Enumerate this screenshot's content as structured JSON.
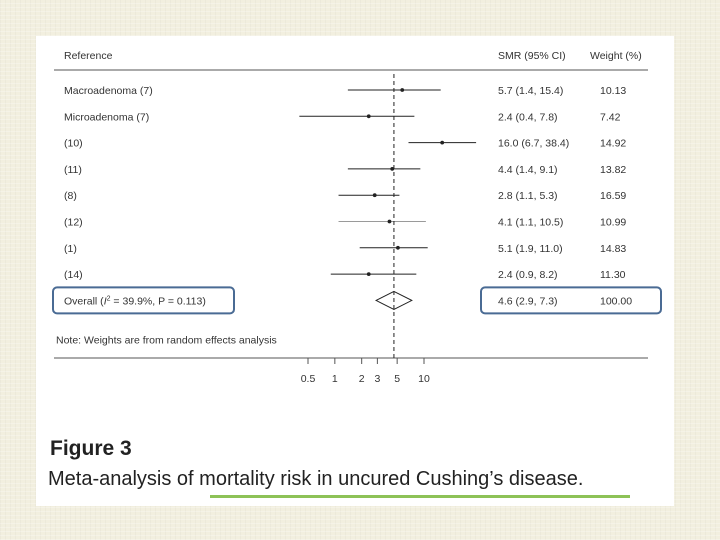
{
  "chart_data": {
    "type": "forest",
    "x_scale": "log",
    "reference_line": 4.6,
    "xticks": [
      "0.5",
      "1",
      "2",
      "3",
      "5",
      "10"
    ],
    "columns": {
      "reference": "Reference",
      "estimate": "SMR (95% CI)",
      "weight": "Weight (%)"
    },
    "studies": [
      {
        "label": "Macroadenoma (7)",
        "est": 5.7,
        "lo": 1.4,
        "hi": 15.4,
        "ci": "5.7 (1.4, 15.4)",
        "weight": "10.13"
      },
      {
        "label": "Microadenoma (7)",
        "est": 2.4,
        "lo": 0.4,
        "hi": 7.8,
        "ci": "2.4 (0.4, 7.8)",
        "weight": "7.42"
      },
      {
        "label": "(10)",
        "est": 16.0,
        "lo": 6.7,
        "hi": 38.4,
        "ci": "16.0 (6.7, 38.4)",
        "weight": "14.92"
      },
      {
        "label": "(11)",
        "est": 4.4,
        "lo": 1.4,
        "hi": 9.1,
        "ci": "4.4 (1.4, 9.1)",
        "weight": "13.82"
      },
      {
        "label": "(8)",
        "est": 2.8,
        "lo": 1.1,
        "hi": 5.3,
        "ci": "2.8 (1.1, 5.3)",
        "weight": "16.59"
      },
      {
        "label": "(12)",
        "est": 4.1,
        "lo": 1.1,
        "hi": 10.5,
        "ci": "4.1 (1.1, 10.5)",
        "weight": "10.99"
      },
      {
        "label": "(1)",
        "est": 5.1,
        "lo": 1.9,
        "hi": 11.0,
        "ci": "5.1 (1.9, 11.0)",
        "weight": "14.83"
      },
      {
        "label": "(14)",
        "est": 2.4,
        "lo": 0.9,
        "hi": 8.2,
        "ci": "2.4 (0.9, 8.2)",
        "weight": "11.30"
      }
    ],
    "overall": {
      "label_prefix": "Overall (",
      "i2_symbol": "I",
      "i2_sup": "2",
      "label_suffix": " = 39.9%, P = 0.113)",
      "est": 4.6,
      "lo": 2.9,
      "hi": 7.3,
      "ci": "4.6 (2.9, 7.3)",
      "weight": "100.00"
    },
    "note": "Note: Weights are from random effects analysis"
  },
  "caption": {
    "title": "Figure 3",
    "text": "Meta-analysis of mortality risk in uncured Cushing’s disease."
  },
  "colors": {
    "highlight_box": "#4a6b94",
    "underline": "#8dc257",
    "line": "#222222"
  }
}
